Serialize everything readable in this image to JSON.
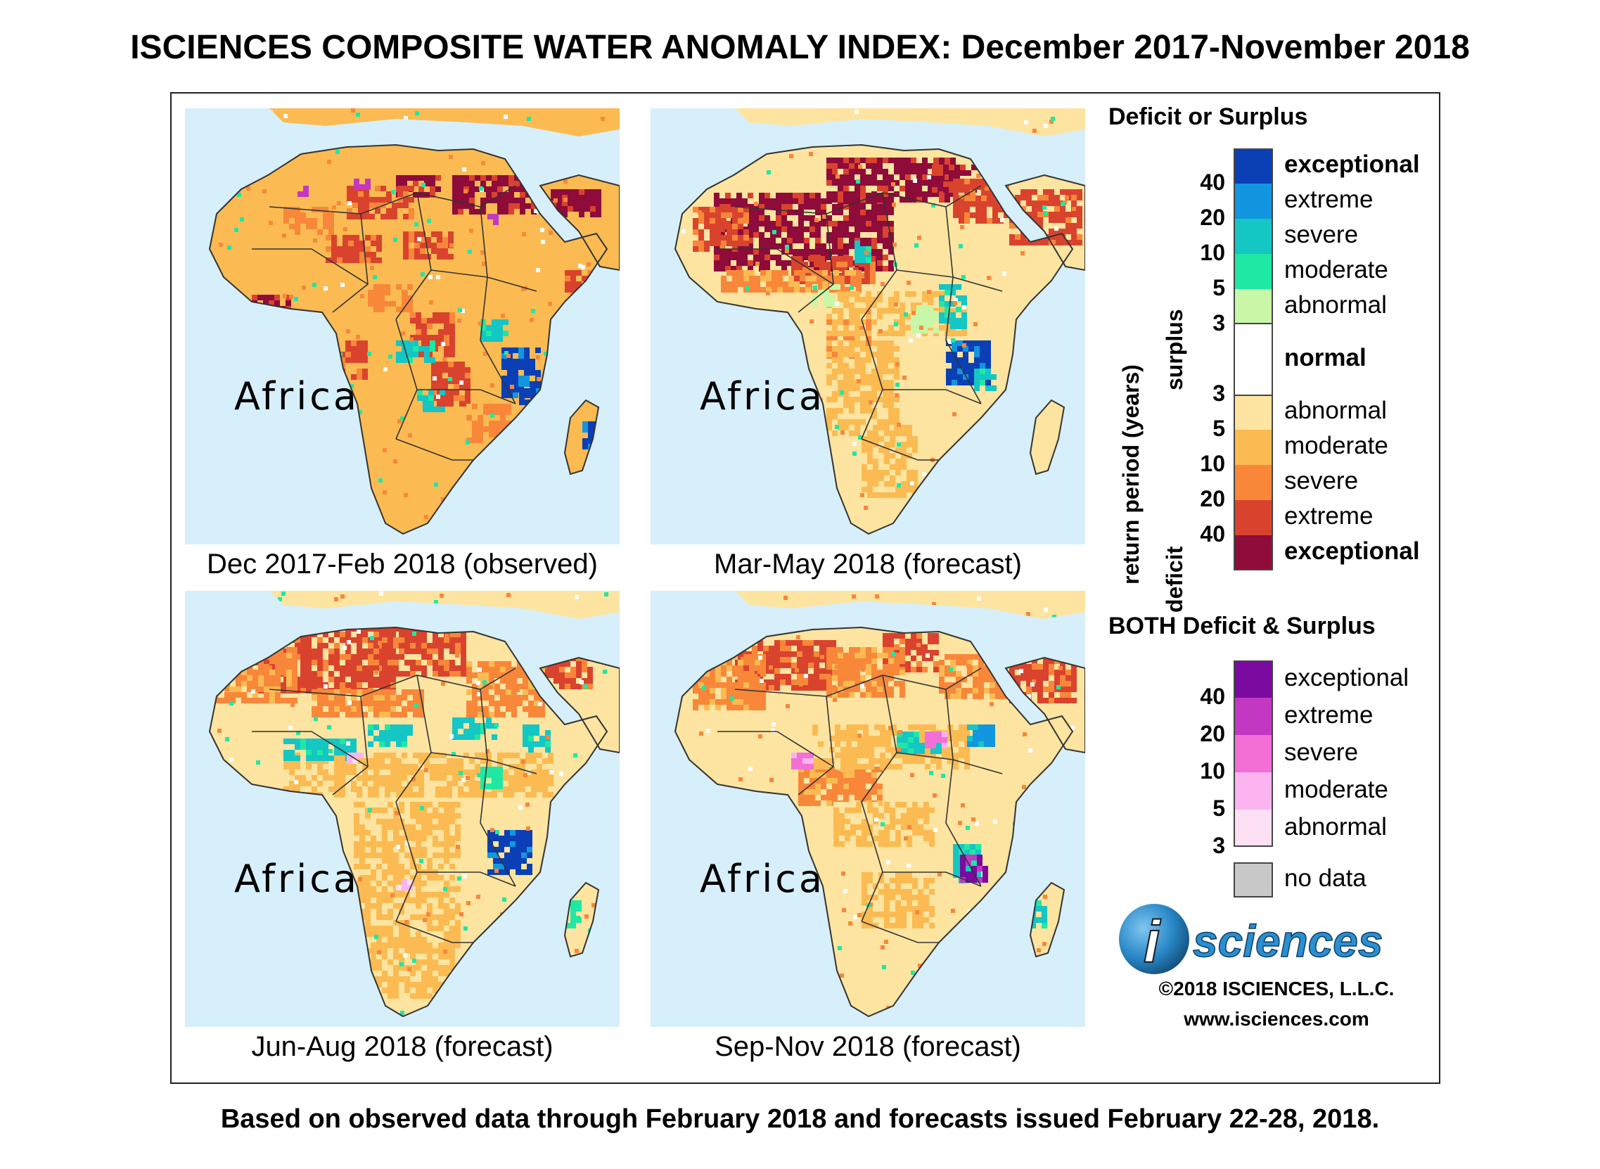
{
  "title": "ISCIENCES COMPOSITE WATER ANOMALY INDEX: December 2017-November 2018",
  "panels": [
    {
      "caption": "Dec 2017-Feb 2018 (observed)",
      "region_label": "Africa"
    },
    {
      "caption": "Mar-May 2018 (forecast)",
      "region_label": "Africa"
    },
    {
      "caption": "Jun-Aug 2018 (forecast)",
      "region_label": "Africa"
    },
    {
      "caption": "Sep-Nov 2018 (forecast)",
      "region_label": "Africa"
    }
  ],
  "legend": {
    "title": "Deficit or Surplus",
    "axis_label": "return period (years)",
    "surplus_label": "surplus",
    "deficit_label": "deficit",
    "surplus_levels": [
      {
        "label": "exceptional",
        "color": "#0a3fb5"
      },
      {
        "label": "extreme",
        "color": "#1296e0"
      },
      {
        "label": "severe",
        "color": "#14c6c4"
      },
      {
        "label": "moderate",
        "color": "#1fe8a4"
      },
      {
        "label": "abnormal",
        "color": "#c8f7a8"
      }
    ],
    "surplus_ticks": [
      "40",
      "20",
      "10",
      "5",
      "3"
    ],
    "normal_label": "normal",
    "normal_color": "#ffffff",
    "deficit_levels": [
      {
        "label": "abnormal",
        "color": "#fde4a0"
      },
      {
        "label": "moderate",
        "color": "#fbbb52"
      },
      {
        "label": "severe",
        "color": "#f8873a"
      },
      {
        "label": "extreme",
        "color": "#d9432e"
      },
      {
        "label": "exceptional",
        "color": "#8e0b3a"
      }
    ],
    "deficit_ticks": [
      "3",
      "5",
      "10",
      "20",
      "40"
    ],
    "both_title": "BOTH Deficit & Surplus",
    "both_levels": [
      {
        "label": "exceptional",
        "color": "#7a0aa0"
      },
      {
        "label": "extreme",
        "color": "#c238c2"
      },
      {
        "label": "severe",
        "color": "#f36fd6"
      },
      {
        "label": "moderate",
        "color": "#fbb4ef"
      },
      {
        "label": "abnormal",
        "color": "#fde0f3"
      }
    ],
    "both_ticks": [
      "40",
      "20",
      "10",
      "5",
      "3"
    ],
    "no_data_label": "no data",
    "no_data_color": "#c8c8c8"
  },
  "logo_text": "sciences",
  "logo_letter": "i",
  "copyright": "©2018 ISCIENCES, L.L.C.",
  "website": "www.isciences.com",
  "footer": "Based on observed data through February 2018 and forecasts issued February 22-28, 2018."
}
